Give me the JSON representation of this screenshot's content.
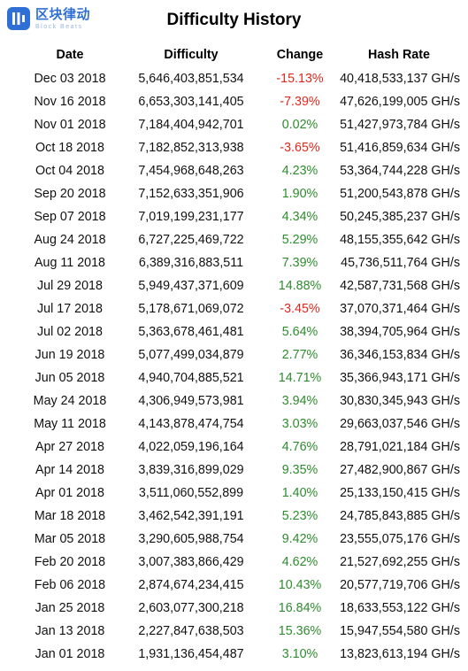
{
  "brand": {
    "name_cn": "区块律动",
    "name_en": "Block Beats"
  },
  "title": "Difficulty History",
  "columns": [
    "Date",
    "Difficulty",
    "Change",
    "Hash Rate"
  ],
  "colors": {
    "negative": "#e0281e",
    "positive": "#2e8b2e",
    "brand": "#2f6fd6"
  },
  "rows": [
    {
      "date": "Dec 03 2018",
      "difficulty": "5,646,403,851,534",
      "change": "-15.13%",
      "hash_rate": "40,418,533,137 GH/s"
    },
    {
      "date": "Nov 16 2018",
      "difficulty": "6,653,303,141,405",
      "change": "-7.39%",
      "hash_rate": "47,626,199,005 GH/s"
    },
    {
      "date": "Nov 01 2018",
      "difficulty": "7,184,404,942,701",
      "change": "0.02%",
      "hash_rate": "51,427,973,784 GH/s"
    },
    {
      "date": "Oct 18 2018",
      "difficulty": "7,182,852,313,938",
      "change": "-3.65%",
      "hash_rate": "51,416,859,634 GH/s"
    },
    {
      "date": "Oct 04 2018",
      "difficulty": "7,454,968,648,263",
      "change": "4.23%",
      "hash_rate": "53,364,744,228 GH/s"
    },
    {
      "date": "Sep 20 2018",
      "difficulty": "7,152,633,351,906",
      "change": "1.90%",
      "hash_rate": "51,200,543,878 GH/s"
    },
    {
      "date": "Sep 07 2018",
      "difficulty": "7,019,199,231,177",
      "change": "4.34%",
      "hash_rate": "50,245,385,237 GH/s"
    },
    {
      "date": "Aug 24 2018",
      "difficulty": "6,727,225,469,722",
      "change": "5.29%",
      "hash_rate": "48,155,355,642 GH/s"
    },
    {
      "date": "Aug 11 2018",
      "difficulty": "6,389,316,883,511",
      "change": "7.39%",
      "hash_rate": "45,736,511,764 GH/s"
    },
    {
      "date": "Jul 29 2018",
      "difficulty": "5,949,437,371,609",
      "change": "14.88%",
      "hash_rate": "42,587,731,568 GH/s"
    },
    {
      "date": "Jul 17 2018",
      "difficulty": "5,178,671,069,072",
      "change": "-3.45%",
      "hash_rate": "37,070,371,464 GH/s"
    },
    {
      "date": "Jul 02 2018",
      "difficulty": "5,363,678,461,481",
      "change": "5.64%",
      "hash_rate": "38,394,705,964 GH/s"
    },
    {
      "date": "Jun 19 2018",
      "difficulty": "5,077,499,034,879",
      "change": "2.77%",
      "hash_rate": "36,346,153,834 GH/s"
    },
    {
      "date": "Jun 05 2018",
      "difficulty": "4,940,704,885,521",
      "change": "14.71%",
      "hash_rate": "35,366,943,171 GH/s"
    },
    {
      "date": "May 24 2018",
      "difficulty": "4,306,949,573,981",
      "change": "3.94%",
      "hash_rate": "30,830,345,943 GH/s"
    },
    {
      "date": "May 11 2018",
      "difficulty": "4,143,878,474,754",
      "change": "3.03%",
      "hash_rate": "29,663,037,546 GH/s"
    },
    {
      "date": "Apr 27 2018",
      "difficulty": "4,022,059,196,164",
      "change": "4.76%",
      "hash_rate": "28,791,021,184 GH/s"
    },
    {
      "date": "Apr 14 2018",
      "difficulty": "3,839,316,899,029",
      "change": "9.35%",
      "hash_rate": "27,482,900,867 GH/s"
    },
    {
      "date": "Apr 01 2018",
      "difficulty": "3,511,060,552,899",
      "change": "1.40%",
      "hash_rate": "25,133,150,415 GH/s"
    },
    {
      "date": "Mar 18 2018",
      "difficulty": "3,462,542,391,191",
      "change": "5.23%",
      "hash_rate": "24,785,843,885 GH/s"
    },
    {
      "date": "Mar 05 2018",
      "difficulty": "3,290,605,988,754",
      "change": "9.42%",
      "hash_rate": "23,555,075,176 GH/s"
    },
    {
      "date": "Feb 20 2018",
      "difficulty": "3,007,383,866,429",
      "change": "4.62%",
      "hash_rate": "21,527,692,255 GH/s"
    },
    {
      "date": "Feb 06 2018",
      "difficulty": "2,874,674,234,415",
      "change": "10.43%",
      "hash_rate": "20,577,719,706 GH/s"
    },
    {
      "date": "Jan 25 2018",
      "difficulty": "2,603,077,300,218",
      "change": "16.84%",
      "hash_rate": "18,633,553,122 GH/s"
    },
    {
      "date": "Jan 13 2018",
      "difficulty": "2,227,847,638,503",
      "change": "15.36%",
      "hash_rate": "15,947,554,580 GH/s"
    },
    {
      "date": "Jan 01 2018",
      "difficulty": "1,931,136,454,487",
      "change": "3.10%",
      "hash_rate": "13,823,613,194 GH/s"
    }
  ]
}
